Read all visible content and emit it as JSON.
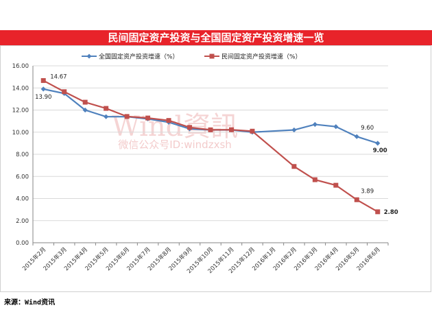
{
  "title": "民间固定资产投资与全国固定资产投资增速一览",
  "source": "来源：Wind资讯",
  "watermark": {
    "main": "Wind資訊",
    "sub": "微信公众号ID:windzxsh"
  },
  "colors": {
    "title_bg": "#e8232a",
    "national": "#4f81bd",
    "private": "#c0504d",
    "grid": "#d9d9d9",
    "watermark": "#f2c6c6"
  },
  "chart_data": {
    "type": "line",
    "categories": [
      "2015年2月",
      "2015年3月",
      "2015年4月",
      "2015年5月",
      "2015年6月",
      "2015年7月",
      "2015年8月",
      "2015年9月",
      "2015年10月",
      "2015年11月",
      "2015年12月",
      "2016年1月",
      "2016年2月",
      "2016年3月",
      "2016年4月",
      "2016年5月",
      "2016年6月"
    ],
    "series": [
      {
        "name": "全国固定资产投资增速（%）",
        "marker": "diamond",
        "values": [
          13.9,
          13.5,
          12.0,
          11.4,
          11.4,
          11.2,
          10.9,
          10.3,
          10.2,
          10.2,
          10.0,
          null,
          10.2,
          10.7,
          10.5,
          9.6,
          9.0
        ]
      },
      {
        "name": "民间固定资产投资增速（%）",
        "marker": "square",
        "values": [
          14.67,
          13.66,
          12.71,
          12.15,
          11.42,
          11.28,
          11.06,
          10.43,
          10.21,
          10.22,
          10.09,
          null,
          6.9,
          5.7,
          5.2,
          3.89,
          2.8
        ]
      }
    ],
    "ylim": [
      0,
      16
    ],
    "yticks": [
      "0.00",
      "2.00",
      "4.00",
      "6.00",
      "8.00",
      "10.00",
      "12.00",
      "14.00",
      "16.00"
    ],
    "grid": true,
    "legend": "top",
    "data_labels": [
      {
        "series": 0,
        "index": 0,
        "text": "13.90"
      },
      {
        "series": 1,
        "index": 0,
        "text": "14.67"
      },
      {
        "series": 0,
        "index": 15,
        "text": "9.60"
      },
      {
        "series": 0,
        "index": 16,
        "text": "9.00"
      },
      {
        "series": 1,
        "index": 15,
        "text": "3.89"
      },
      {
        "series": 1,
        "index": 16,
        "text": "2.80"
      }
    ]
  }
}
